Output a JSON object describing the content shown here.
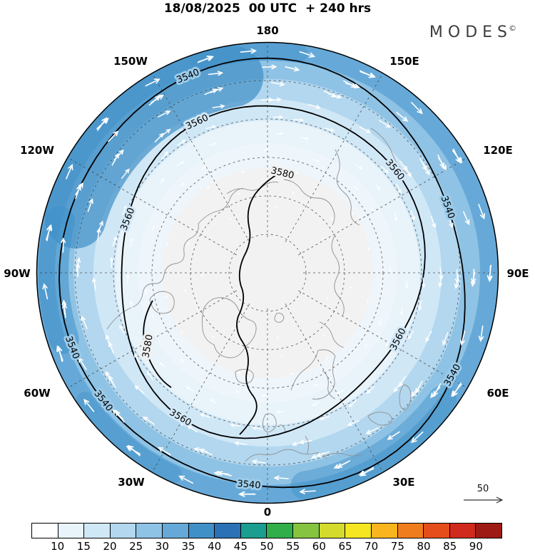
{
  "header": {
    "title": "18/08/2025  00 UTC  + 240 hrs",
    "brand": "MODES",
    "brand_mark": "©"
  },
  "map": {
    "longitudes": [
      "180",
      "150W",
      "150E",
      "120W",
      "120E",
      "90W",
      "90E",
      "60W",
      "60E",
      "30W",
      "30E",
      "0"
    ],
    "contour_labels": {
      "h3540": "3540",
      "h3560": "3560",
      "h3580": "3580"
    },
    "reference_vector_label": "50"
  },
  "chart_data": {
    "type": "heatmap",
    "variant": "north-polar-stereographic filled-contour map with wind vectors",
    "title": "18/08/2025 00 UTC + 240 hrs",
    "longitude_ring_labels": [
      "180",
      "150W",
      "150E",
      "120W",
      "120E",
      "90W",
      "90E",
      "60W",
      "60E",
      "30W",
      "30E",
      "0"
    ],
    "contour_levels": [
      3540,
      3560,
      3580
    ],
    "contour_level_labels": [
      "3540",
      "3560",
      "3580"
    ],
    "shading": "blue wind-speed fill, strongest (25-40) in outer annulus, near-white (<10) over the pole",
    "vectors": "white arrows circulating clockwise (easterly circumpolar flow)",
    "reference_vector_value": 50,
    "colorbar": {
      "orientation": "horizontal",
      "position": "bottom",
      "ticks": [
        10,
        15,
        20,
        25,
        30,
        35,
        40,
        45,
        50,
        55,
        60,
        65,
        70,
        75,
        80,
        85,
        90
      ],
      "colors": [
        "#ffffff",
        "#e8f3fa",
        "#d0e7f6",
        "#b2d7ef",
        "#8fc3e5",
        "#66a9d8",
        "#4090c8",
        "#2a72b5",
        "#1b9e8f",
        "#2fae49",
        "#86c440",
        "#d4db2c",
        "#f6e521",
        "#f8b51e",
        "#f07d1d",
        "#e54e1b",
        "#cf2a1d",
        "#9e1a15"
      ]
    }
  }
}
